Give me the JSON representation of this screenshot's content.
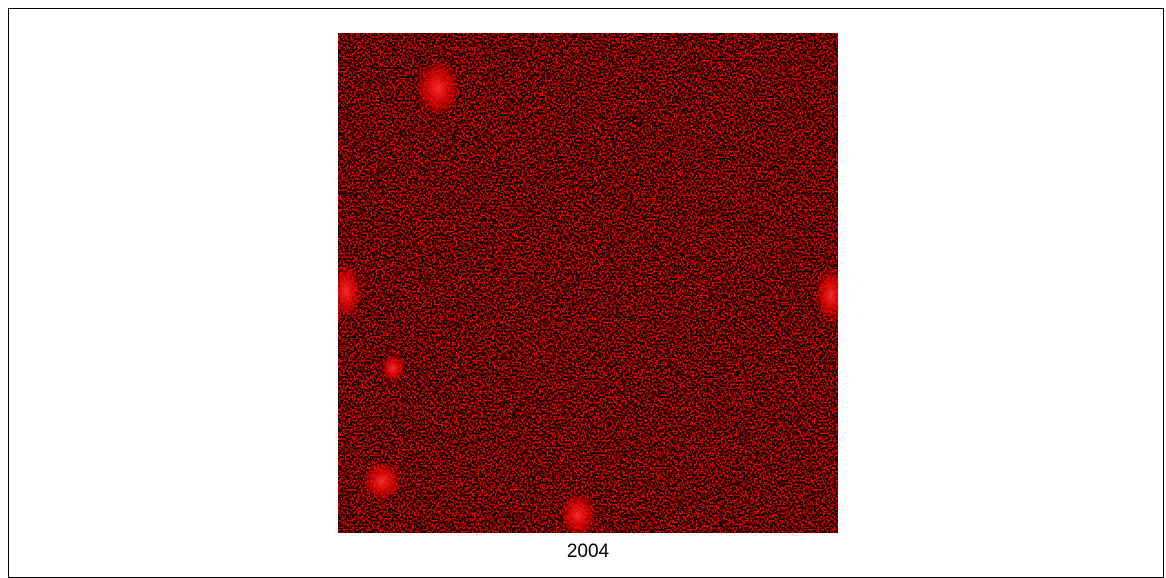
{
  "caption": "2004"
}
